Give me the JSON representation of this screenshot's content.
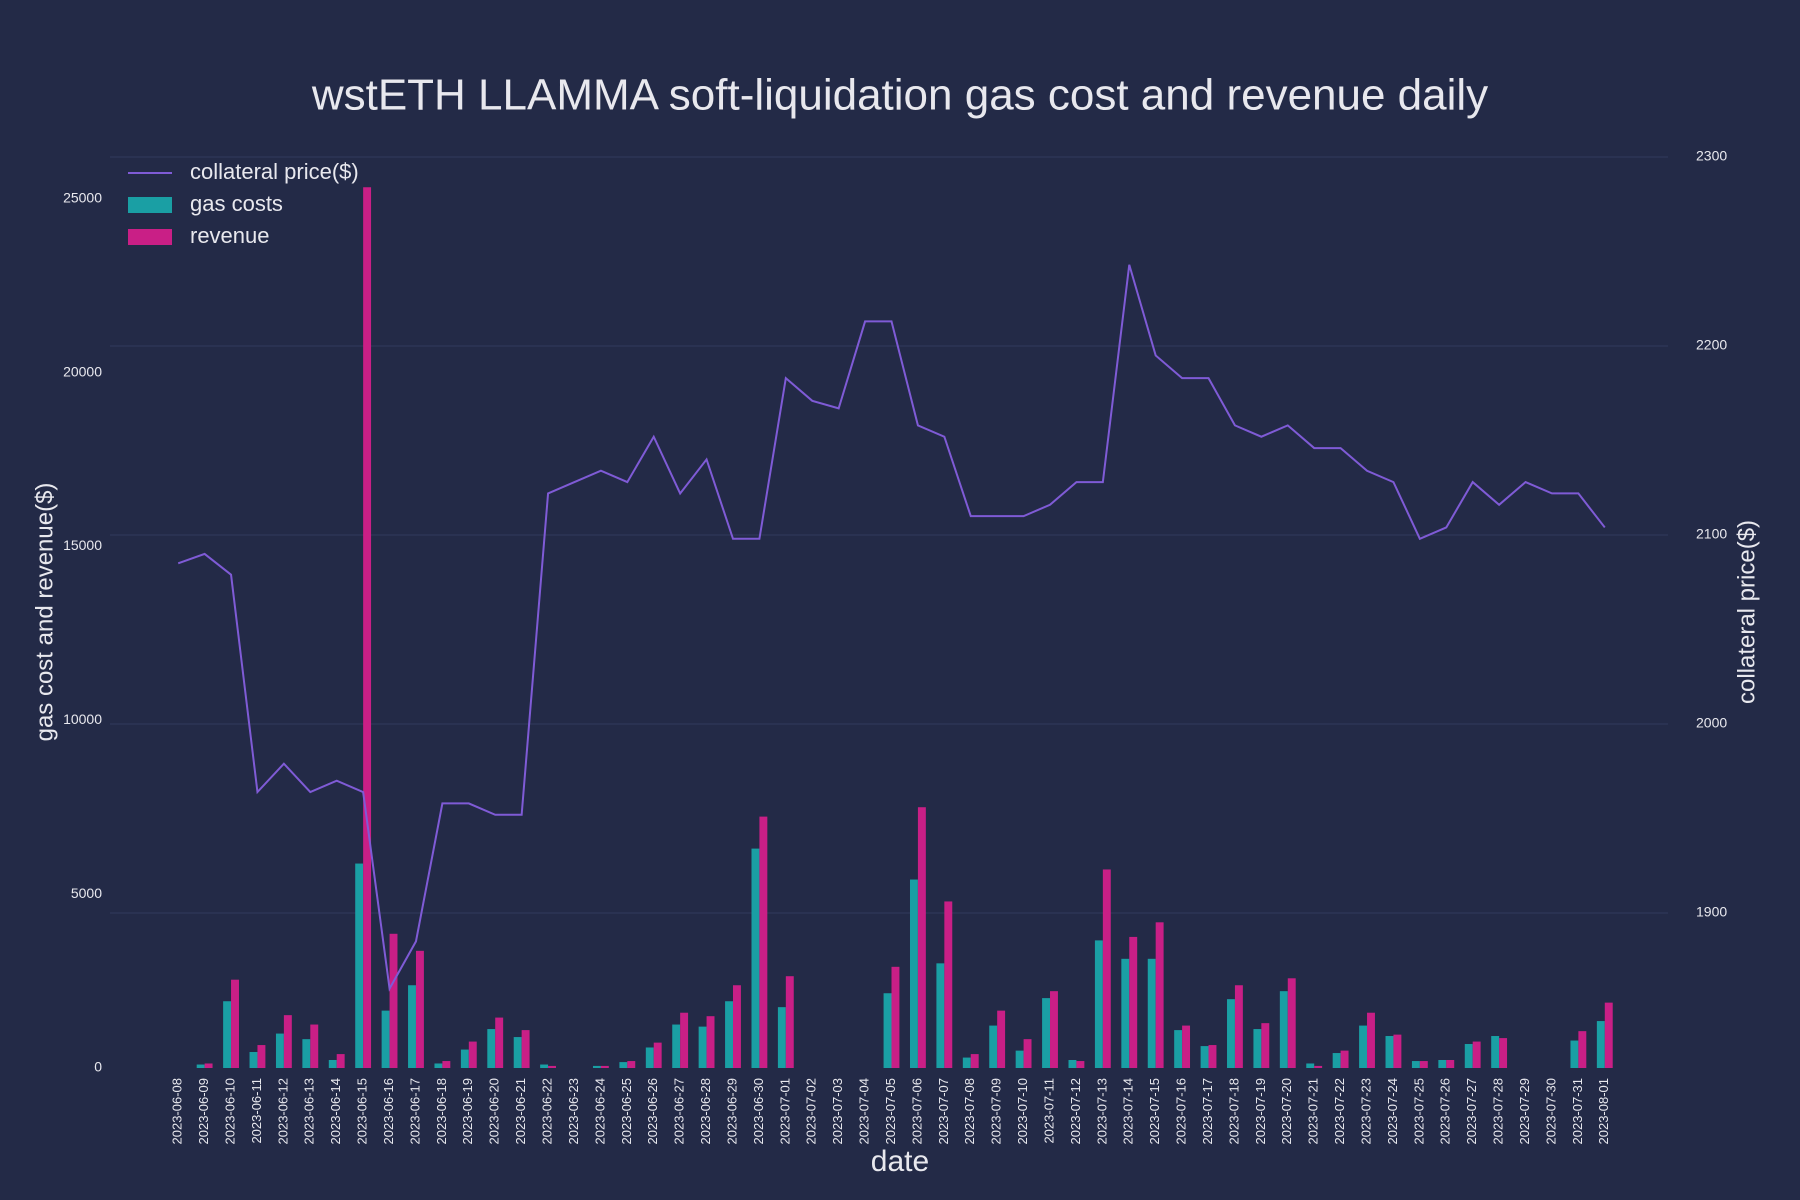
{
  "chart_data": {
    "type": "bar-line",
    "title": "wstETH LLAMMA soft-liquidation gas cost and revenue daily",
    "xlabel": "date",
    "ylabel": "gas cost and revenue($)",
    "y2label": "collateral price($)",
    "categories": [
      "2023-06-08",
      "2023-06-09",
      "2023-06-10",
      "2023-06-11",
      "2023-06-12",
      "2023-06-13",
      "2023-06-14",
      "2023-06-15",
      "2023-06-16",
      "2023-06-17",
      "2023-06-18",
      "2023-06-19",
      "2023-06-20",
      "2023-06-21",
      "2023-06-22",
      "2023-06-23",
      "2023-06-24",
      "2023-06-25",
      "2023-06-26",
      "2023-06-27",
      "2023-06-28",
      "2023-06-29",
      "2023-06-30",
      "2023-07-01",
      "2023-07-02",
      "2023-07-03",
      "2023-07-04",
      "2023-07-05",
      "2023-07-06",
      "2023-07-07",
      "2023-07-08",
      "2023-07-09",
      "2023-07-10",
      "2023-07-11",
      "2023-07-12",
      "2023-07-13",
      "2023-07-14",
      "2023-07-15",
      "2023-07-16",
      "2023-07-17",
      "2023-07-18",
      "2023-07-19",
      "2023-07-20",
      "2023-07-21",
      "2023-07-22",
      "2023-07-23",
      "2023-07-24",
      "2023-07-25",
      "2023-07-26",
      "2023-07-27",
      "2023-07-28",
      "2023-07-29",
      "2023-07-30",
      "2023-07-31",
      "2023-08-01"
    ],
    "series": [
      {
        "name": "collateral price($)",
        "kind": "line",
        "axis": "y2",
        "color": "#7f5bd6",
        "values": [
          2085,
          2090,
          2079,
          1964,
          1979,
          1964,
          1970,
          1964,
          1860,
          1885,
          1958,
          1958,
          1952,
          1952,
          2122,
          2128,
          2134,
          2128,
          2152,
          2122,
          2140,
          2098,
          2098,
          2183,
          2171,
          2167,
          2213,
          2213,
          2158,
          2152,
          2110,
          2110,
          2110,
          2116,
          2128,
          2128,
          2243,
          2195,
          2183,
          2183,
          2158,
          2152,
          2158,
          2146,
          2146,
          2134,
          2128,
          2098,
          2104,
          2128,
          2116,
          2128,
          2122,
          2122,
          2104
        ]
      },
      {
        "name": "gas costs",
        "kind": "bar",
        "color": "#1a9fa4",
        "values": [
          0,
          100,
          1920,
          460,
          990,
          830,
          230,
          5880,
          1650,
          2380,
          130,
          530,
          1120,
          890,
          100,
          0,
          60,
          170,
          590,
          1250,
          1190,
          1920,
          6310,
          1750,
          0,
          0,
          0,
          2150,
          5420,
          3010,
          300,
          1220,
          500,
          2010,
          230,
          3670,
          3140,
          3140,
          1090,
          630,
          1980,
          1120,
          2210,
          130,
          430,
          1220,
          920,
          200,
          230,
          690,
          920,
          0,
          0,
          790,
          1350
        ]
      },
      {
        "name": "revenue",
        "kind": "bar",
        "color": "#c91f86",
        "values": [
          0,
          130,
          2540,
          660,
          1520,
          1250,
          400,
          25330,
          3860,
          3370,
          200,
          760,
          1450,
          1090,
          60,
          0,
          60,
          200,
          730,
          1590,
          1490,
          2380,
          7230,
          2640,
          0,
          0,
          0,
          2910,
          7500,
          4790,
          400,
          1650,
          830,
          2210,
          200,
          5710,
          3770,
          4190,
          1220,
          660,
          2380,
          1290,
          2580,
          60,
          500,
          1590,
          960,
          200,
          230,
          760,
          860,
          0,
          0,
          1060,
          1880
        ]
      }
    ],
    "ylim": [
      0,
      26200
    ],
    "yticks": [
      0,
      5000,
      10000,
      15000,
      20000,
      25000
    ],
    "y2lim": [
      1818,
      2300
    ],
    "y2ticks": [
      1900,
      2000,
      2100,
      2200,
      2300
    ],
    "grid": true,
    "grid_color": "#323a5c",
    "legend": "top-left"
  }
}
